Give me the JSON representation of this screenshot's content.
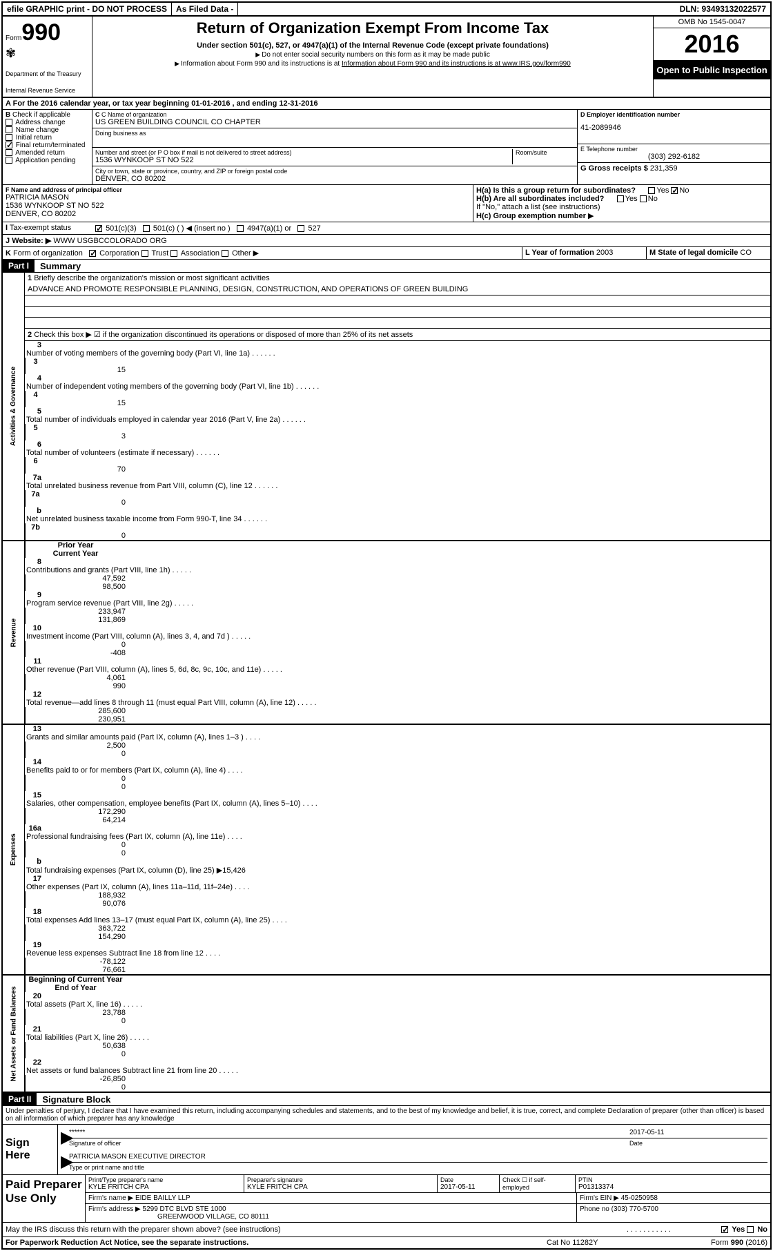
{
  "topbar": {
    "efile": "efile GRAPHIC print - DO NOT PROCESS",
    "asfiled": "As Filed Data -",
    "dln": "DLN: 93493132022577"
  },
  "header": {
    "form_prefix": "Form",
    "form_num": "990",
    "dept": "Department of the Treasury",
    "irs": "Internal Revenue Service",
    "title": "Return of Organization Exempt From Income Tax",
    "subtitle": "Under section 501(c), 527, or 4947(a)(1) of the Internal Revenue Code (except private foundations)",
    "note1": "Do not enter social security numbers on this form as it may be made public",
    "note2": "Information about Form 990 and its instructions is at www.IRS.gov/form990",
    "omb": "OMB No 1545-0047",
    "year": "2016",
    "inspect": "Open to Public Inspection"
  },
  "sectionA": "For the 2016 calendar year, or tax year beginning 01-01-2016  , and ending 12-31-2016",
  "sectionB": {
    "title": "Check if applicable",
    "items": [
      "Address change",
      "Name change",
      "Initial return",
      "Final return/terminated",
      "Amended return",
      "Application pending"
    ],
    "checked_index": 3
  },
  "sectionC": {
    "name_label": "C Name of organization",
    "name": "US GREEN BUILDING COUNCIL CO CHAPTER",
    "dba_label": "Doing business as",
    "addr_label": "Number and street (or P O  box if mail is not delivered to street address)",
    "room_label": "Room/suite",
    "addr": "1536 WYNKOOP ST NO 522",
    "city_label": "City or town, state or province, country, and ZIP or foreign postal code",
    "city": "DENVER, CO  80202"
  },
  "sectionD": {
    "label": "D Employer identification number",
    "ein": "41-2089946"
  },
  "sectionE": {
    "label": "E Telephone number",
    "phone": "(303) 292-6182"
  },
  "sectionG": {
    "label": "G Gross receipts $",
    "amount": "231,359"
  },
  "sectionF": {
    "label": "F  Name and address of principal officer",
    "name": "PATRICIA MASON",
    "addr1": "1536 WYNKOOP ST NO 522",
    "addr2": "DENVER, CO  80202"
  },
  "sectionH": {
    "a_label": "H(a)  Is this a group return for subordinates?",
    "b_label": "H(b) Are all subordinates included?",
    "attach": "If \"No,\" attach a list  (see instructions)",
    "c_label": "H(c)  Group exemption number"
  },
  "sectionI": {
    "label": "Tax-exempt status",
    "opt1": "501(c)(3)",
    "opt2": "501(c) (  )",
    "insert": "(insert no )",
    "opt3": "4947(a)(1) or",
    "opt4": "527"
  },
  "sectionJ": {
    "label": "Website:",
    "url": "WWW USGBCCOLORADO ORG"
  },
  "sectionK": {
    "label": "Form of organization",
    "opts": [
      "Corporation",
      "Trust",
      "Association",
      "Other"
    ]
  },
  "sectionL": {
    "label": "L Year of formation",
    "year": "2003"
  },
  "sectionM": {
    "label": "M State of legal domicile",
    "state": "CO"
  },
  "part1": {
    "label": "Part I",
    "title": "Summary",
    "line1_label": "Briefly describe the organization's mission or most significant activities",
    "mission": "ADVANCE AND PROMOTE RESPONSIBLE PLANNING, DESIGN, CONSTRUCTION, AND OPERATIONS OF GREEN BUILDING",
    "line2": "Check this box ▶ ☑ if the organization discontinued its operations or disposed of more than 25% of its net assets",
    "governance": [
      {
        "n": "3",
        "d": "Number of voting members of the governing body (Part VI, line 1a)",
        "b": "3",
        "v": "15"
      },
      {
        "n": "4",
        "d": "Number of independent voting members of the governing body (Part VI, line 1b)",
        "b": "4",
        "v": "15"
      },
      {
        "n": "5",
        "d": "Total number of individuals employed in calendar year 2016 (Part V, line 2a)",
        "b": "5",
        "v": "3"
      },
      {
        "n": "6",
        "d": "Total number of volunteers (estimate if necessary)",
        "b": "6",
        "v": "70"
      },
      {
        "n": "7a",
        "d": "Total unrelated business revenue from Part VIII, column (C), line 12",
        "b": "7a",
        "v": "0"
      },
      {
        "n": "b",
        "d": "Net unrelated business taxable income from Form 990-T, line 34",
        "b": "7b",
        "v": "0"
      }
    ],
    "col_prior": "Prior Year",
    "col_current": "Current Year",
    "revenue": [
      {
        "n": "8",
        "d": "Contributions and grants (Part VIII, line 1h)",
        "p": "47,592",
        "c": "98,500"
      },
      {
        "n": "9",
        "d": "Program service revenue (Part VIII, line 2g)",
        "p": "233,947",
        "c": "131,869"
      },
      {
        "n": "10",
        "d": "Investment income (Part VIII, column (A), lines 3, 4, and 7d )",
        "p": "0",
        "c": "-408"
      },
      {
        "n": "11",
        "d": "Other revenue (Part VIII, column (A), lines 5, 6d, 8c, 9c, 10c, and 11e)",
        "p": "4,061",
        "c": "990"
      },
      {
        "n": "12",
        "d": "Total revenue—add lines 8 through 11 (must equal Part VIII, column (A), line 12)",
        "p": "285,600",
        "c": "230,951"
      }
    ],
    "expenses": [
      {
        "n": "13",
        "d": "Grants and similar amounts paid (Part IX, column (A), lines 1–3 )",
        "p": "2,500",
        "c": "0"
      },
      {
        "n": "14",
        "d": "Benefits paid to or for members (Part IX, column (A), line 4)",
        "p": "0",
        "c": "0"
      },
      {
        "n": "15",
        "d": "Salaries, other compensation, employee benefits (Part IX, column (A), lines 5–10)",
        "p": "172,290",
        "c": "64,214"
      },
      {
        "n": "16a",
        "d": "Professional fundraising fees (Part IX, column (A), line 11e)",
        "p": "0",
        "c": "0"
      },
      {
        "n": "b",
        "d": "Total fundraising expenses (Part IX, column (D), line 25) ▶15,426",
        "p": "",
        "c": ""
      },
      {
        "n": "17",
        "d": "Other expenses (Part IX, column (A), lines 11a–11d, 11f–24e)",
        "p": "188,932",
        "c": "90,076"
      },
      {
        "n": "18",
        "d": "Total expenses  Add lines 13–17 (must equal Part IX, column (A), line 25)",
        "p": "363,722",
        "c": "154,290"
      },
      {
        "n": "19",
        "d": "Revenue less expenses  Subtract line 18 from line 12",
        "p": "-78,122",
        "c": "76,661"
      }
    ],
    "col_boy": "Beginning of Current Year",
    "col_eoy": "End of Year",
    "netassets": [
      {
        "n": "20",
        "d": "Total assets (Part X, line 16)",
        "p": "23,788",
        "c": "0"
      },
      {
        "n": "21",
        "d": "Total liabilities (Part X, line 26)",
        "p": "50,638",
        "c": "0"
      },
      {
        "n": "22",
        "d": "Net assets or fund balances  Subtract line 21 from line 20",
        "p": "-26,850",
        "c": "0"
      }
    ]
  },
  "part2": {
    "label": "Part II",
    "title": "Signature Block",
    "declaration": "Under penalties of perjury, I declare that I have examined this return, including accompanying schedules and statements, and to the best of my knowledge and belief, it is true, correct, and complete  Declaration of preparer (other than officer) is based on all information of which preparer has any knowledge",
    "sign_here": "Sign Here",
    "sig_stars": "******",
    "sig_officer": "Signature of officer",
    "sig_date": "2017-05-11",
    "date_label": "Date",
    "officer_name": "PATRICIA MASON  EXECUTIVE DIRECTOR",
    "name_title_label": "Type or print name and title",
    "paid_label": "Paid Preparer Use Only",
    "prep_name_label": "Print/Type preparer's name",
    "prep_name": "KYLE FRITCH CPA",
    "prep_sig_label": "Preparer's signature",
    "prep_sig": "KYLE FRITCH CPA",
    "prep_date_label": "Date",
    "prep_date": "2017-05-11",
    "check_label": "Check ☐ if self-employed",
    "ptin_label": "PTIN",
    "ptin": "P01313374",
    "firm_name_label": "Firm's name    ▶",
    "firm_name": "EIDE BAILLY LLP",
    "firm_ein_label": "Firm's EIN ▶",
    "firm_ein": "45-0250958",
    "firm_addr_label": "Firm's address ▶",
    "firm_addr1": "5299 DTC BLVD STE 1000",
    "firm_addr2": "GREENWOOD VILLAGE, CO  80111",
    "phone_label": "Phone no",
    "phone": "(303) 770-5700",
    "discuss": "May the IRS discuss this return with the preparer shown above? (see instructions)",
    "yes": "Yes",
    "no": "No"
  },
  "footer": {
    "paperwork": "For Paperwork Reduction Act Notice, see the separate instructions.",
    "cat": "Cat  No  11282Y",
    "form": "Form 990 (2016)"
  }
}
